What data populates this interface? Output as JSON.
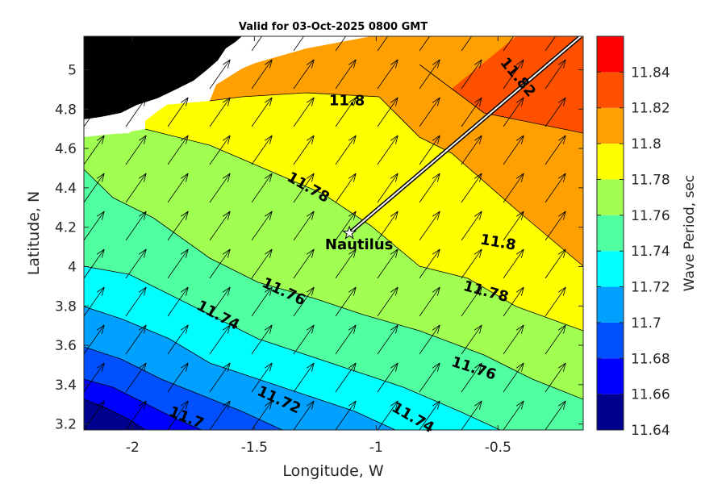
{
  "title": "Valid for 03-Oct-2025 0800 GMT",
  "chart_data": {
    "type": "heatmap",
    "xlabel": "Longitude, W",
    "ylabel": "Latitude, N",
    "xlim": [
      -2.2,
      -0.15
    ],
    "ylim": [
      3.17,
      5.17
    ],
    "xticks": [
      "-2",
      "-1.5",
      "-1",
      "-0.5"
    ],
    "xtick_values": [
      -2,
      -1.5,
      -1,
      -0.5
    ],
    "yticks": [
      "3.2",
      "3.4",
      "3.6",
      "3.8",
      "4",
      "4.2",
      "4.4",
      "4.6",
      "4.8",
      "5"
    ],
    "ytick_values": [
      3.2,
      3.4,
      3.6,
      3.8,
      4.0,
      4.2,
      4.4,
      4.6,
      4.8,
      5.0
    ],
    "colorbar": {
      "label": "Wave Period, sec",
      "tick_labels": [
        "11.64",
        "11.66",
        "11.68",
        "11.7",
        "11.72",
        "11.74",
        "11.76",
        "11.78",
        "11.8",
        "11.82",
        "11.84"
      ],
      "levels": [
        11.64,
        11.66,
        11.68,
        11.7,
        11.72,
        11.74,
        11.76,
        11.78,
        11.8,
        11.82,
        11.84,
        11.86
      ],
      "colors": [
        "#00008f",
        "#0000ff",
        "#0050ff",
        "#00a0ff",
        "#00ffff",
        "#50ffa0",
        "#a0ff50",
        "#ffff00",
        "#ffa000",
        "#ff5000",
        "#ff0000"
      ]
    },
    "contour_labels": [
      {
        "text": "11.8",
        "lon": -1.12,
        "lat": 4.84,
        "rotation": 0
      },
      {
        "text": "11.82",
        "lon": -0.42,
        "lat": 4.96,
        "rotation": 50
      },
      {
        "text": "11.78",
        "lon": -1.28,
        "lat": 4.4,
        "rotation": 30
      },
      {
        "text": "11.8",
        "lon": -0.5,
        "lat": 4.12,
        "rotation": 10
      },
      {
        "text": "11.76",
        "lon": -1.38,
        "lat": 3.87,
        "rotation": 25
      },
      {
        "text": "11.78",
        "lon": -0.55,
        "lat": 3.87,
        "rotation": 15
      },
      {
        "text": "11.74",
        "lon": -1.65,
        "lat": 3.75,
        "rotation": 28
      },
      {
        "text": "11.76",
        "lon": -0.6,
        "lat": 3.48,
        "rotation": 18
      },
      {
        "text": "11.72",
        "lon": -1.4,
        "lat": 3.32,
        "rotation": 25
      },
      {
        "text": "11.74",
        "lon": -0.85,
        "lat": 3.23,
        "rotation": 30
      },
      {
        "text": "11.7",
        "lon": -1.78,
        "lat": 3.23,
        "rotation": 22
      }
    ],
    "marker": {
      "label": "Nautilus",
      "lon": -1.11,
      "lat": 4.17
    },
    "track": [
      [
        -1.11,
        4.17
      ],
      [
        -0.16,
        5.17
      ]
    ],
    "vector_direction_deg": 35
  }
}
